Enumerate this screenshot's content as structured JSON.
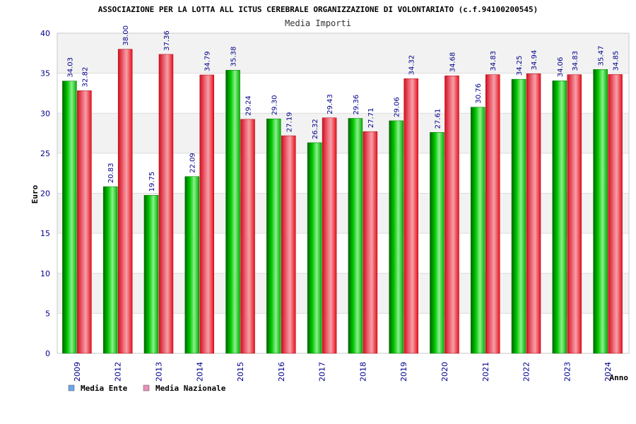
{
  "chart_data": {
    "type": "bar",
    "title": "ASSOCIAZIONE PER LA LOTTA ALL ICTUS CEREBRALE ORGANIZZAZIONE DI VOLONTARIATO (c.f.94100200545)",
    "subtitle": "Media Importi",
    "xlabel": "Anno",
    "ylabel": "Euro",
    "ylim": [
      0,
      40
    ],
    "yticks": [
      0,
      5,
      10,
      15,
      20,
      25,
      30,
      35,
      40
    ],
    "grid": true,
    "legend_position": "bottom-left",
    "categories": [
      "2009",
      "2012",
      "2013",
      "2014",
      "2015",
      "2016",
      "2017",
      "2018",
      "2019",
      "2020",
      "2021",
      "2022",
      "2023",
      "2024"
    ],
    "series": [
      {
        "name": "Media Ente",
        "bar_color": "#00c000",
        "legend_color": "#6aa8e8",
        "values": [
          34.03,
          20.83,
          19.75,
          22.09,
          35.38,
          29.3,
          26.32,
          29.36,
          29.06,
          27.61,
          30.76,
          34.25,
          34.06,
          35.47
        ],
        "labels": [
          "34.03",
          "20.83",
          "19.75",
          "22.09",
          "35.38",
          "29.30",
          "26.32",
          "29.36",
          "29.06",
          "27.61",
          "30.76",
          "34.25",
          "34.06",
          "35.47"
        ]
      },
      {
        "name": "Media Nazionale",
        "bar_color": "#e8202c",
        "legend_color": "#e890b8",
        "values": [
          32.82,
          38.0,
          37.36,
          34.79,
          29.24,
          27.19,
          29.43,
          27.71,
          34.32,
          34.68,
          34.83,
          34.94,
          34.83,
          34.85
        ],
        "labels": [
          "32.82",
          "38.00",
          "37.36",
          "34.79",
          "29.24",
          "27.19",
          "29.43",
          "27.71",
          "34.32",
          "34.68",
          "34.83",
          "34.94",
          "34.83",
          "34.85"
        ]
      }
    ]
  }
}
